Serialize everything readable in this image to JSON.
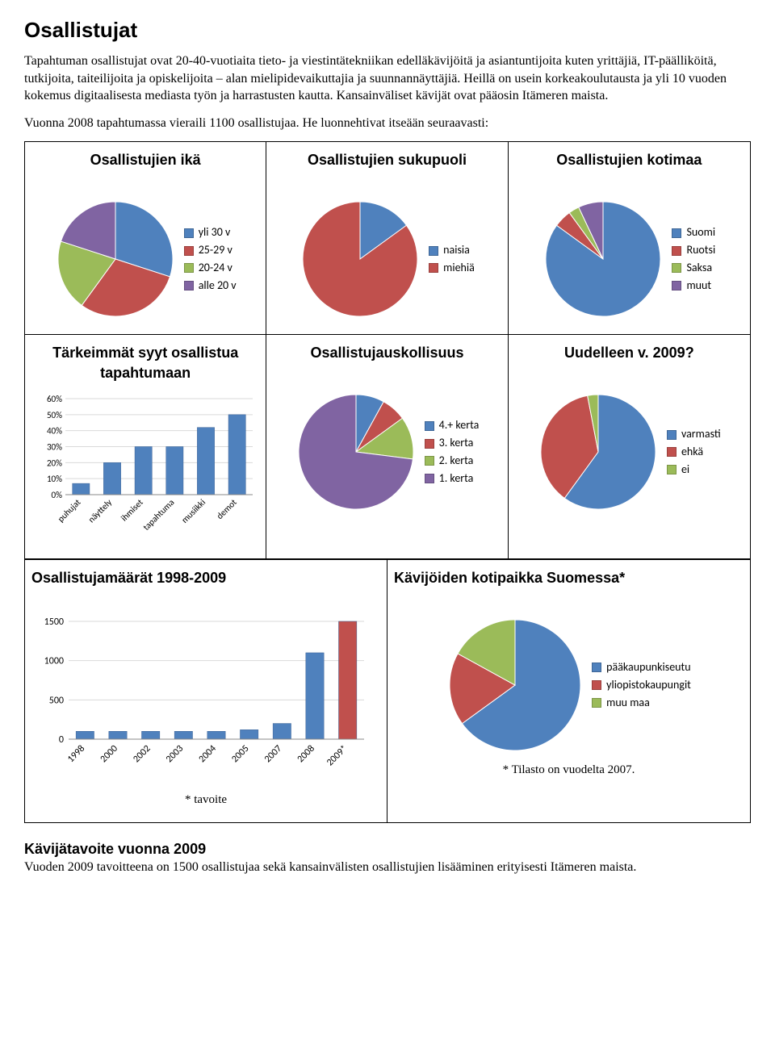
{
  "heading": "Osallistujat",
  "para1": "Tapahtuman osallistujat ovat 20-40-vuotiaita tieto- ja viestintätekniikan edelläkävijöitä ja asiantuntijoita kuten yrittäjiä, IT-päälliköitä, tutkijoita, taiteilijoita ja opiskelijoita – alan mielipidevaikuttajia ja suunnannäyttäjiä. Heillä on usein korkeakoulutausta ja yli 10 vuoden kokemus digitaalisesta mediasta työn ja harrastusten kautta. Kansainväliset kävijät ovat pääosin Itämeren maista.",
  "para2": "Vuonna 2008 tapahtumassa vieraili 1100 osallistujaa. He luonnehtivat itseään seuraavasti:",
  "colors": {
    "blue": "#4f81bd",
    "red": "#c0504d",
    "green": "#9bbb59",
    "purple": "#8064a2",
    "grid": "#d9d9d9",
    "axis": "#888888"
  },
  "pie_age": {
    "title": "Osallistujien ikä",
    "slices": [
      {
        "label": "yli 30 v",
        "value": 30,
        "color": "#4f81bd"
      },
      {
        "label": "25-29 v",
        "value": 30,
        "color": "#c0504d"
      },
      {
        "label": "20-24 v",
        "value": 20,
        "color": "#9bbb59"
      },
      {
        "label": "alle 20 v",
        "value": 20,
        "color": "#8064a2"
      }
    ]
  },
  "pie_gender": {
    "title": "Osallistujien sukupuoli",
    "slices": [
      {
        "label": "naisia",
        "value": 15,
        "color": "#4f81bd"
      },
      {
        "label": "miehiä",
        "value": 85,
        "color": "#c0504d"
      }
    ]
  },
  "pie_country": {
    "title": "Osallistujien kotimaa",
    "slices": [
      {
        "label": "Suomi",
        "value": 85,
        "color": "#4f81bd"
      },
      {
        "label": "Ruotsi",
        "value": 5,
        "color": "#c0504d"
      },
      {
        "label": "Saksa",
        "value": 3,
        "color": "#9bbb59"
      },
      {
        "label": "muut",
        "value": 7,
        "color": "#8064a2"
      }
    ]
  },
  "bar_reasons": {
    "title": "Tärkeimmät syyt osallistua tapahtumaan",
    "categories": [
      "puhujat",
      "näyttely",
      "ihmiset",
      "tapahtuma",
      "musiikki",
      "demot"
    ],
    "values": [
      7,
      20,
      30,
      30,
      42,
      50
    ],
    "ymax": 60,
    "ystep": 10,
    "bar_color": "#4f81bd",
    "ylabel_suffix": "%"
  },
  "pie_loyalty": {
    "title": "Osallistujauskollisuus",
    "slices": [
      {
        "label": "4.+ kerta",
        "value": 8,
        "color": "#4f81bd"
      },
      {
        "label": "3. kerta",
        "value": 7,
        "color": "#c0504d"
      },
      {
        "label": "2. kerta",
        "value": 12,
        "color": "#9bbb59"
      },
      {
        "label": "1. kerta",
        "value": 73,
        "color": "#8064a2"
      }
    ]
  },
  "pie_return": {
    "title": "Uudelleen v. 2009?",
    "slices": [
      {
        "label": "varmasti",
        "value": 60,
        "color": "#4f81bd"
      },
      {
        "label": "ehkä",
        "value": 37,
        "color": "#c0504d"
      },
      {
        "label": "ei",
        "value": 3,
        "color": "#9bbb59"
      }
    ]
  },
  "bar_years": {
    "title": "Osallistujamäärät 1998-2009",
    "categories": [
      "1998",
      "2000",
      "2002",
      "2003",
      "2004",
      "2005",
      "2007",
      "2008",
      "2009*"
    ],
    "values": [
      100,
      100,
      100,
      100,
      100,
      120,
      200,
      1100,
      1500
    ],
    "ymax": 1500,
    "yticks": [
      0,
      500,
      1000,
      1500
    ],
    "bar_color": "#4f81bd",
    "highlight_last_color": "#c0504d",
    "note": "* tavoite"
  },
  "pie_home": {
    "title": "Kävijöiden kotipaikka Suomessa*",
    "slices": [
      {
        "label": "pääkaupunkiseutu",
        "value": 65,
        "color": "#4f81bd"
      },
      {
        "label": "yliopistokaupungit",
        "value": 18,
        "color": "#c0504d"
      },
      {
        "label": "muu maa",
        "value": 17,
        "color": "#9bbb59"
      }
    ],
    "note": "* Tilasto on vuodelta 2007."
  },
  "goal_heading": "Kävijätavoite vuonna 2009",
  "goal_text": "Vuoden 2009 tavoitteena on 1500 osallistujaa sekä kansainvälisten osallistujien lisääminen erityisesti Itämeren maista."
}
